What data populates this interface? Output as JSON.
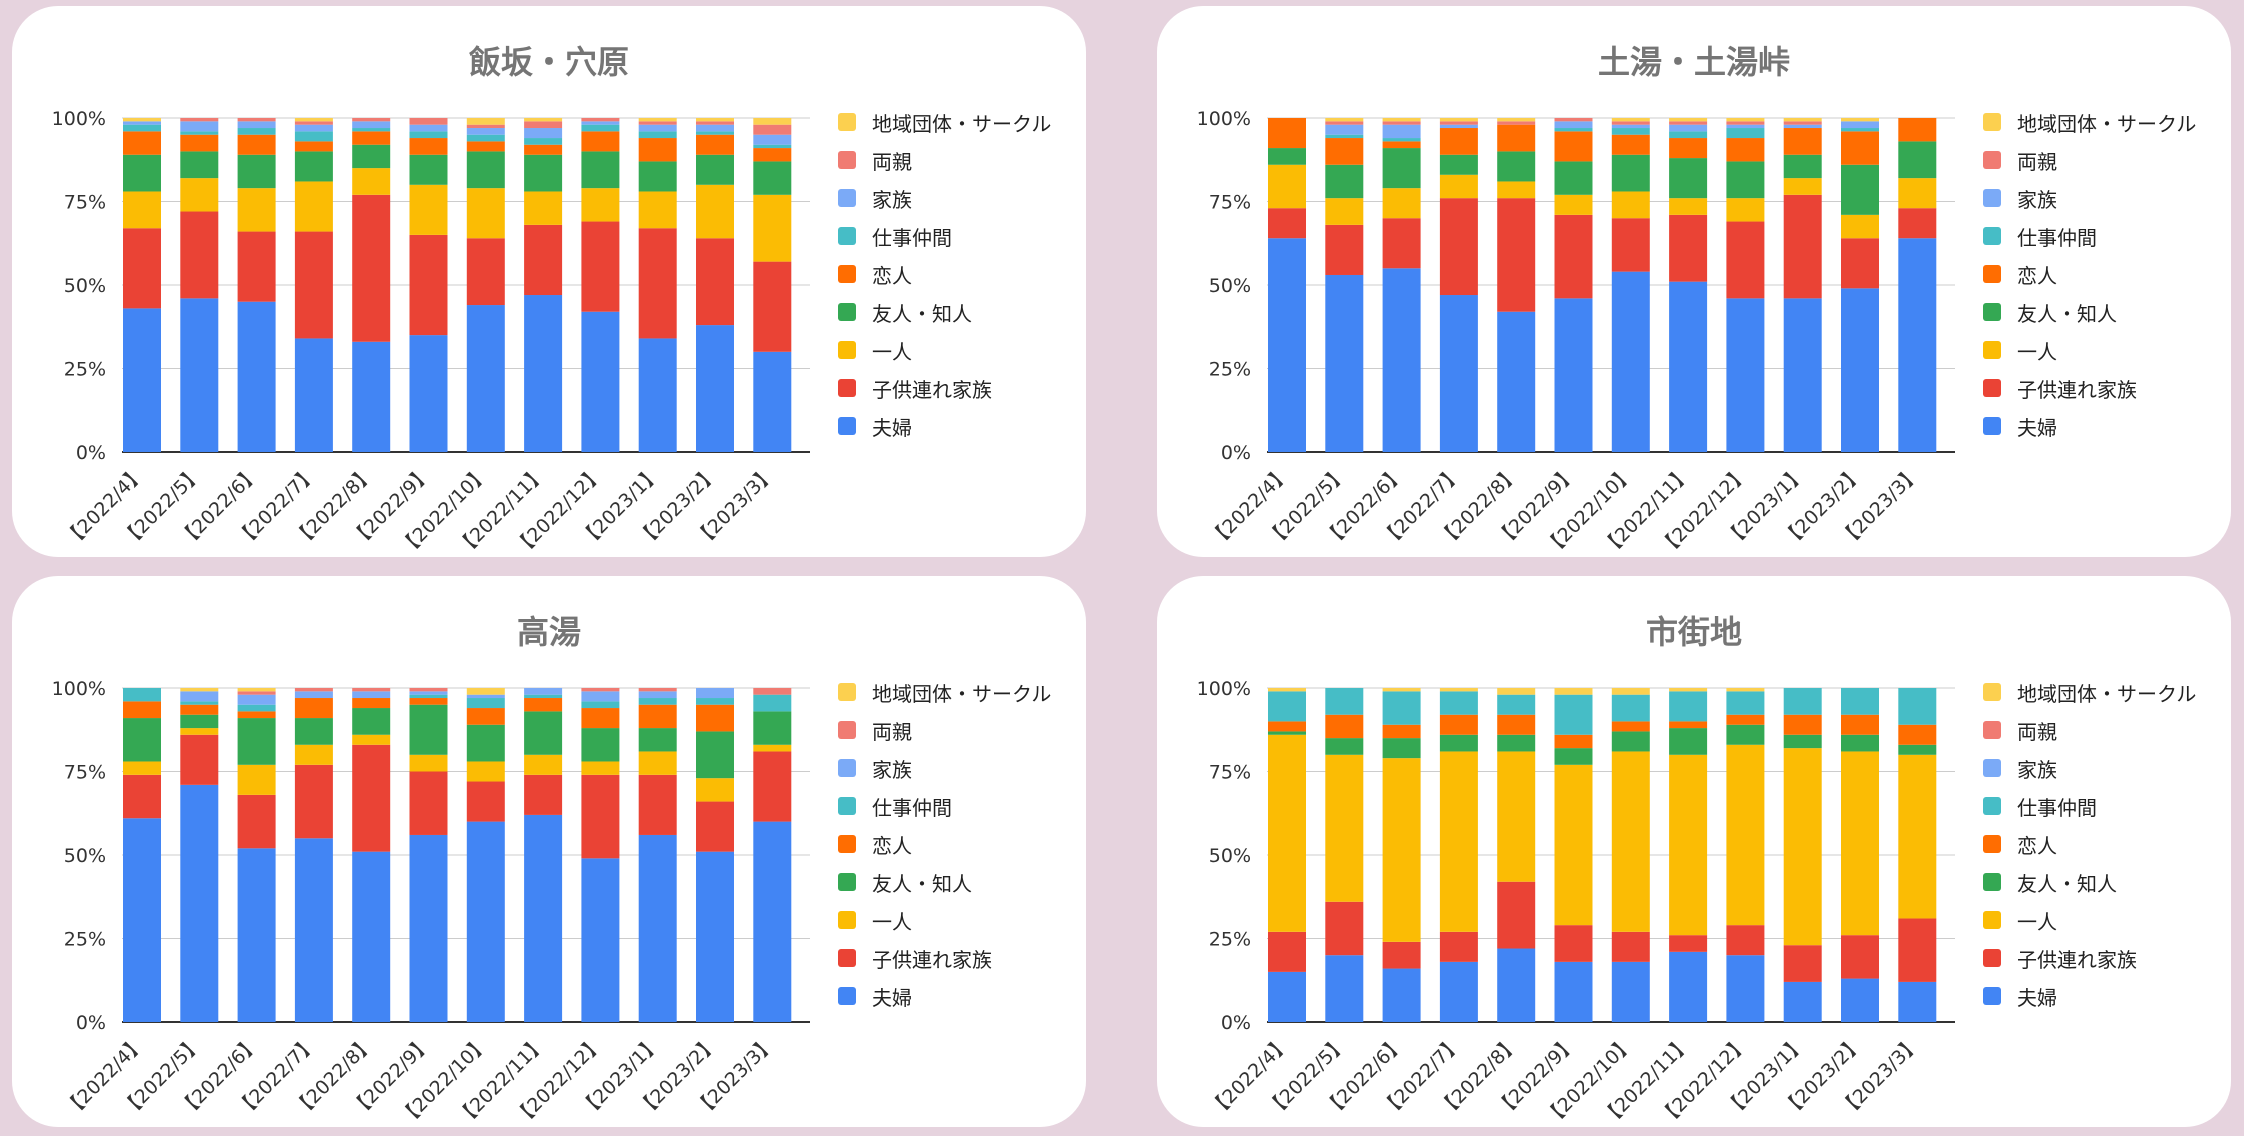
{
  "series_names": [
    "夫婦",
    "子供連れ家族",
    "一人",
    "友人・知人",
    "恋人",
    "仕事仲間",
    "家族",
    "両親",
    "地域団体・サークル"
  ],
  "series_colors": [
    "#4285f4",
    "#ea4335",
    "#fbbc04",
    "#34a853",
    "#ff6d01",
    "#46bdc6",
    "#7baaf7",
    "#f07b72",
    "#fcd04f"
  ],
  "chart_data": [
    {
      "type": "bar",
      "stacked": true,
      "normalized": true,
      "title": "飯坂・穴原",
      "categories": [
        "【2022/4】",
        "【2022/5】",
        "【2022/6】",
        "【2022/7】",
        "【2022/8】",
        "【2022/9】",
        "【2022/10】",
        "【2022/11】",
        "【2022/12】",
        "【2023/1】",
        "【2023/2】",
        "【2023/3】"
      ],
      "ylim": [
        0,
        100
      ],
      "yticks": [
        "0%",
        "25%",
        "50%",
        "75%",
        "100%"
      ],
      "legend_position": "right",
      "grid": true,
      "series": [
        {
          "name": "夫婦",
          "values": [
            43,
            46,
            45,
            34,
            33,
            35,
            44,
            47,
            42,
            34,
            38,
            30
          ]
        },
        {
          "name": "子供連れ家族",
          "values": [
            24,
            26,
            21,
            32,
            44,
            30,
            20,
            21,
            27,
            33,
            26,
            27
          ]
        },
        {
          "name": "一人",
          "values": [
            11,
            10,
            13,
            15,
            8,
            15,
            15,
            10,
            10,
            11,
            16,
            20
          ]
        },
        {
          "name": "友人・知人",
          "values": [
            11,
            8,
            10,
            9,
            7,
            9,
            11,
            11,
            11,
            9,
            9,
            10
          ]
        },
        {
          "name": "恋人",
          "values": [
            7,
            5,
            6,
            3,
            4,
            5,
            3,
            3,
            6,
            7,
            6,
            4
          ]
        },
        {
          "name": "仕事仲間",
          "values": [
            2,
            1,
            2,
            3,
            1,
            2,
            2,
            2,
            2,
            2,
            1,
            1
          ]
        },
        {
          "name": "家族",
          "values": [
            1,
            3,
            2,
            2,
            2,
            2,
            2,
            3,
            1,
            2,
            2,
            3
          ]
        },
        {
          "name": "両親",
          "values": [
            0,
            1,
            1,
            1,
            1,
            2,
            1,
            2,
            1,
            1,
            1,
            3
          ]
        },
        {
          "name": "地域団体・サークル",
          "values": [
            1,
            0,
            0,
            1,
            0,
            0,
            2,
            1,
            0,
            1,
            1,
            2
          ]
        }
      ]
    },
    {
      "type": "bar",
      "stacked": true,
      "normalized": true,
      "title": "土湯・土湯峠",
      "categories": [
        "【2022/4】",
        "【2022/5】",
        "【2022/6】",
        "【2022/7】",
        "【2022/8】",
        "【2022/9】",
        "【2022/10】",
        "【2022/11】",
        "【2022/12】",
        "【2023/1】",
        "【2023/2】",
        "【2023/3】"
      ],
      "ylim": [
        0,
        100
      ],
      "yticks": [
        "0%",
        "25%",
        "50%",
        "75%",
        "100%"
      ],
      "legend_position": "right",
      "grid": true,
      "series": [
        {
          "name": "夫婦",
          "values": [
            64,
            53,
            55,
            47,
            42,
            46,
            54,
            51,
            46,
            46,
            49,
            64
          ]
        },
        {
          "name": "子供連れ家族",
          "values": [
            9,
            15,
            15,
            29,
            34,
            25,
            16,
            20,
            23,
            31,
            15,
            9
          ]
        },
        {
          "name": "一人",
          "values": [
            13,
            8,
            9,
            7,
            5,
            6,
            8,
            5,
            7,
            5,
            7,
            9
          ]
        },
        {
          "name": "友人・知人",
          "values": [
            5,
            10,
            12,
            6,
            9,
            10,
            11,
            12,
            11,
            7,
            15,
            11
          ]
        },
        {
          "name": "恋人",
          "values": [
            9,
            8,
            2,
            8,
            8,
            9,
            6,
            6,
            7,
            8,
            10,
            7
          ]
        },
        {
          "name": "仕事仲間",
          "values": [
            0,
            1,
            1,
            0,
            0,
            1,
            2,
            2,
            3,
            0,
            1,
            0
          ]
        },
        {
          "name": "家族",
          "values": [
            0,
            3,
            4,
            1,
            0,
            2,
            1,
            2,
            1,
            1,
            2,
            0
          ]
        },
        {
          "name": "両親",
          "values": [
            0,
            1,
            1,
            1,
            1,
            1,
            1,
            1,
            1,
            1,
            0,
            0
          ]
        },
        {
          "name": "地域団体・サークル",
          "values": [
            0,
            1,
            1,
            1,
            1,
            0,
            1,
            1,
            1,
            1,
            1,
            0
          ]
        }
      ]
    },
    {
      "type": "bar",
      "stacked": true,
      "normalized": true,
      "title": "高湯",
      "categories": [
        "【2022/4】",
        "【2022/5】",
        "【2022/6】",
        "【2022/7】",
        "【2022/8】",
        "【2022/9】",
        "【2022/10】",
        "【2022/11】",
        "【2022/12】",
        "【2023/1】",
        "【2023/2】",
        "【2023/3】"
      ],
      "ylim": [
        0,
        100
      ],
      "yticks": [
        "0%",
        "25%",
        "50%",
        "75%",
        "100%"
      ],
      "legend_position": "right",
      "grid": true,
      "series": [
        {
          "name": "夫婦",
          "values": [
            61,
            71,
            52,
            55,
            51,
            56,
            60,
            62,
            49,
            56,
            51,
            60
          ]
        },
        {
          "name": "子供連れ家族",
          "values": [
            13,
            15,
            16,
            22,
            32,
            19,
            12,
            12,
            25,
            18,
            15,
            21
          ]
        },
        {
          "name": "一人",
          "values": [
            4,
            2,
            9,
            6,
            3,
            5,
            6,
            6,
            4,
            7,
            7,
            2
          ]
        },
        {
          "name": "友人・知人",
          "values": [
            13,
            4,
            14,
            8,
            8,
            15,
            11,
            13,
            10,
            7,
            14,
            10
          ]
        },
        {
          "name": "恋人",
          "values": [
            5,
            3,
            2,
            6,
            3,
            2,
            5,
            4,
            6,
            7,
            8,
            0
          ]
        },
        {
          "name": "仕事仲間",
          "values": [
            4,
            1,
            2,
            0,
            0,
            1,
            3,
            1,
            2,
            2,
            2,
            5
          ]
        },
        {
          "name": "家族",
          "values": [
            0,
            3,
            3,
            2,
            2,
            1,
            1,
            2,
            3,
            2,
            3,
            0
          ]
        },
        {
          "name": "両親",
          "values": [
            0,
            0,
            1,
            1,
            1,
            1,
            0,
            0,
            1,
            1,
            0,
            2
          ]
        },
        {
          "name": "地域団体・サークル",
          "values": [
            0,
            1,
            1,
            0,
            0,
            0,
            2,
            0,
            0,
            0,
            0,
            0
          ]
        }
      ]
    },
    {
      "type": "bar",
      "stacked": true,
      "normalized": true,
      "title": "市街地",
      "categories": [
        "【2022/4】",
        "【2022/5】",
        "【2022/6】",
        "【2022/7】",
        "【2022/8】",
        "【2022/9】",
        "【2022/10】",
        "【2022/11】",
        "【2022/12】",
        "【2023/1】",
        "【2023/2】",
        "【2023/3】"
      ],
      "ylim": [
        0,
        100
      ],
      "yticks": [
        "0%",
        "25%",
        "50%",
        "75%",
        "100%"
      ],
      "legend_position": "right",
      "grid": true,
      "series": [
        {
          "name": "夫婦",
          "values": [
            15,
            20,
            16,
            18,
            22,
            18,
            18,
            21,
            20,
            12,
            13,
            12
          ]
        },
        {
          "name": "子供連れ家族",
          "values": [
            12,
            16,
            8,
            9,
            20,
            11,
            9,
            5,
            9,
            11,
            13,
            19
          ]
        },
        {
          "name": "一人",
          "values": [
            59,
            44,
            55,
            54,
            39,
            48,
            54,
            54,
            54,
            59,
            55,
            49
          ]
        },
        {
          "name": "友人・知人",
          "values": [
            1,
            5,
            6,
            5,
            5,
            5,
            6,
            8,
            6,
            4,
            5,
            3
          ]
        },
        {
          "name": "恋人",
          "values": [
            3,
            7,
            4,
            6,
            6,
            4,
            3,
            2,
            3,
            6,
            6,
            6
          ]
        },
        {
          "name": "仕事仲間",
          "values": [
            9,
            8,
            10,
            7,
            6,
            12,
            8,
            9,
            7,
            8,
            8,
            11
          ]
        },
        {
          "name": "家族",
          "values": [
            0,
            0,
            0,
            0,
            0,
            0,
            0,
            0,
            0,
            0,
            0,
            0
          ]
        },
        {
          "name": "両親",
          "values": [
            0,
            0,
            0,
            0,
            0,
            0,
            0,
            0,
            0,
            0,
            0,
            0
          ]
        },
        {
          "name": "地域団体・サークル",
          "values": [
            1,
            0,
            1,
            1,
            2,
            2,
            2,
            1,
            1,
            0,
            0,
            0
          ]
        }
      ]
    }
  ]
}
